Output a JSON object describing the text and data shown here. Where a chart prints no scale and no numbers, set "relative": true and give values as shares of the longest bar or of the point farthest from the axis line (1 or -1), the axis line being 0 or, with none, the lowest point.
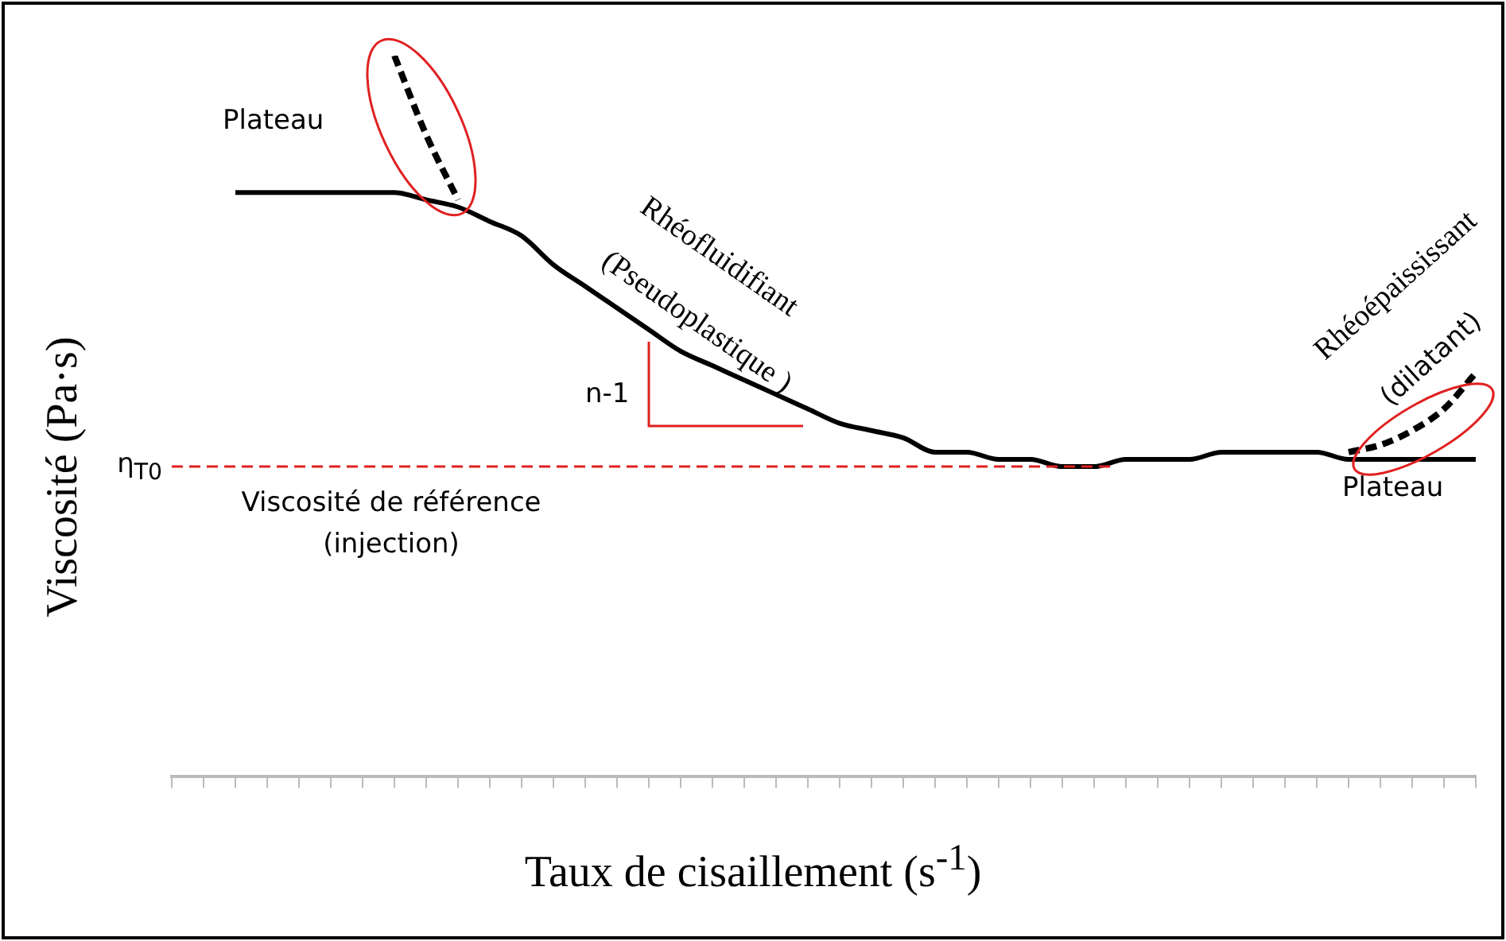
{
  "chart_data": {
    "type": "line",
    "relative": true,
    "xlabel": "Taux de cisaillement (s$^{-1}$)",
    "ylabel": "Viscosité (Pa·s)",
    "categories": [
      null,
      null,
      null,
      null,
      null,
      null,
      null,
      null,
      null,
      null,
      null,
      null,
      null,
      null,
      null,
      null,
      null,
      null,
      null,
      null,
      null,
      null,
      null,
      null,
      null,
      null,
      null,
      null,
      null,
      null,
      null,
      null,
      null,
      null,
      null,
      null,
      null,
      null,
      null,
      null,
      null,
      null
    ],
    "series": [
      {
        "color": "#000000",
        "line_style": "solid",
        "values": [
          null,
          null,
          0.81,
          0.81,
          0.81,
          0.81,
          0.81,
          0.81,
          0.8,
          0.79,
          0.77,
          0.75,
          0.71,
          0.68,
          0.65,
          0.62,
          0.59,
          0.57,
          0.55,
          0.53,
          0.51,
          0.49,
          0.48,
          0.47,
          0.45,
          0.45,
          0.44,
          0.44,
          0.43,
          0.43,
          0.44,
          0.44,
          0.44,
          0.45,
          0.45,
          0.45,
          0.45,
          0.44,
          0.44,
          0.44,
          0.44,
          0.44
        ]
      },
      {
        "color": "#000000",
        "line_style": "dashed",
        "values": [
          null,
          null,
          null,
          null,
          null,
          null,
          null,
          1.0,
          0.89,
          0.8,
          null,
          null,
          null,
          null,
          null,
          null,
          null,
          null,
          null,
          null,
          null,
          null,
          null,
          null,
          null,
          null,
          null,
          null,
          null,
          null,
          null,
          null,
          null,
          null,
          null,
          null,
          null,
          null,
          null,
          null,
          null,
          null
        ]
      },
      {
        "color": "#000000",
        "line_style": "dashed",
        "values": [
          null,
          null,
          null,
          null,
          null,
          null,
          null,
          null,
          null,
          null,
          null,
          null,
          null,
          null,
          null,
          null,
          null,
          null,
          null,
          null,
          null,
          null,
          null,
          null,
          null,
          null,
          null,
          null,
          null,
          null,
          null,
          null,
          null,
          null,
          null,
          null,
          null,
          0.45,
          0.46,
          0.48,
          0.51,
          0.56
        ]
      }
    ],
    "ref_lines": [
      {
        "axis": "y",
        "value": 0.43,
        "label": "η$_{T0}$",
        "color": "#e02020",
        "line_style": "dashed"
      }
    ],
    "annotations": [
      "Plateau",
      "Rhéofluidifiant",
      "(Pseudoplastique )",
      "n-1",
      "Rhéoépaississant",
      "(dilatant)",
      "Plateau",
      "Viscosité de référence (injection)"
    ],
    "legend": false,
    "marker": "none",
    "grid": false
  }
}
